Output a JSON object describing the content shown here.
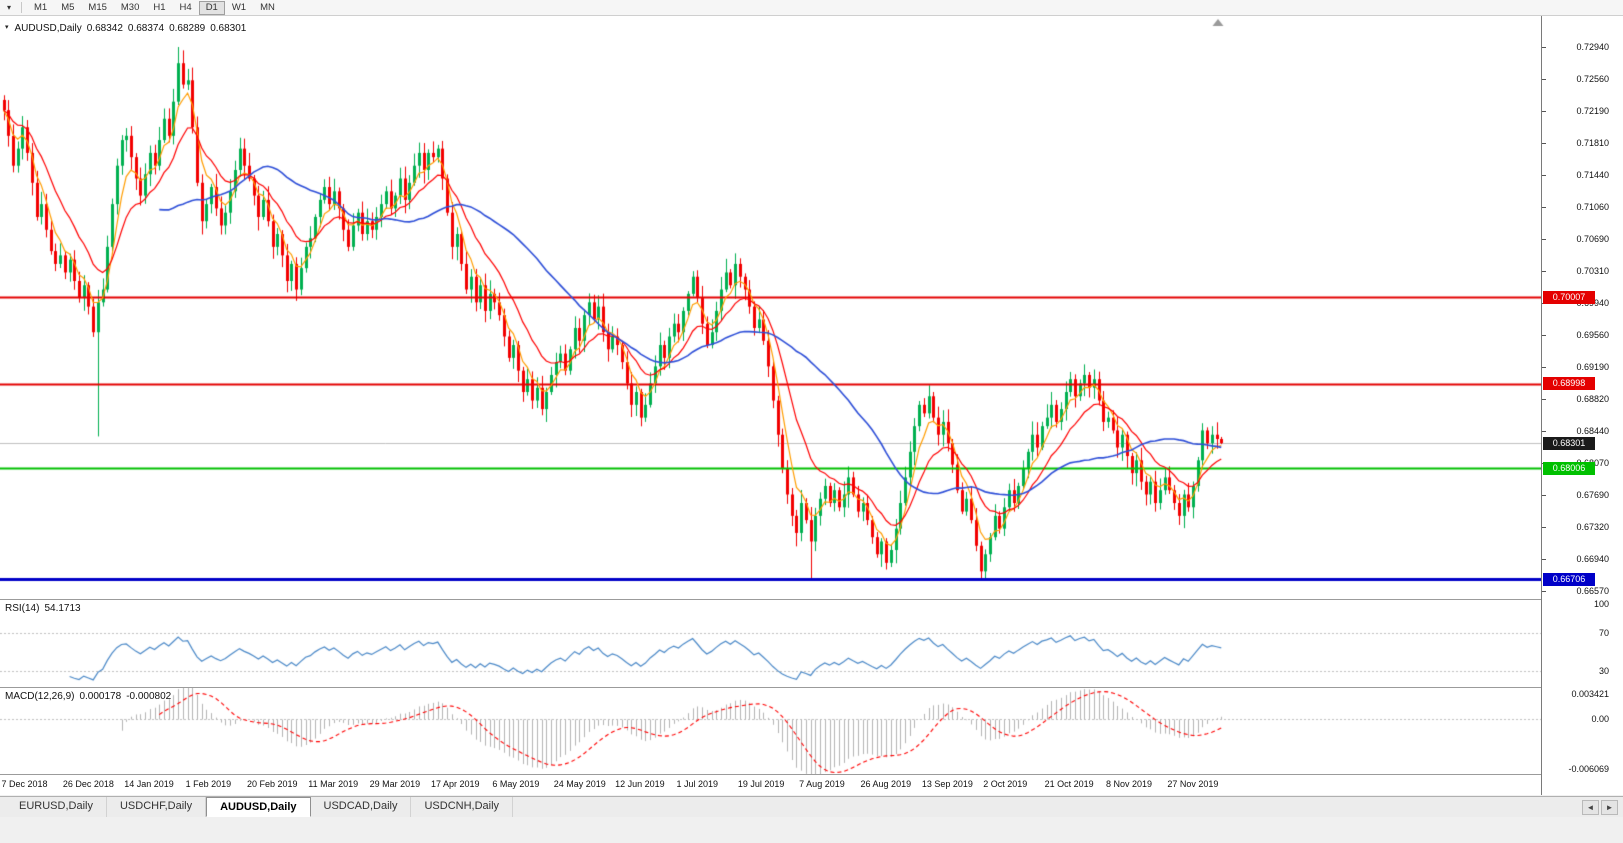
{
  "toolbar": {
    "menu_button": "▾",
    "timeframes": [
      "M1",
      "M5",
      "M15",
      "M30",
      "H1",
      "H4",
      "D1",
      "W1",
      "MN"
    ],
    "active_timeframe": "D1"
  },
  "chart_header": {
    "collapse_icon": "▾",
    "symbol": "AUDUSD,Daily",
    "open": "0.68342",
    "high": "0.68374",
    "low": "0.68289",
    "close": "0.68301"
  },
  "price_axis_ticks": [
    "0.72940",
    "0.72560",
    "0.72190",
    "0.71810",
    "0.71440",
    "0.71060",
    "0.70690",
    "0.70310",
    "0.69940",
    "0.69560",
    "0.69190",
    "0.68820",
    "0.68440",
    "0.68070",
    "0.67690",
    "0.67320",
    "0.66940",
    "0.66570"
  ],
  "price_badges": [
    {
      "name": "resistance-1",
      "label": "0.70007",
      "value": 0.70007,
      "bg": "#e40000",
      "fg": "#ffffff"
    },
    {
      "name": "resistance-2",
      "label": "0.68998",
      "value": 0.68998,
      "bg": "#e40000",
      "fg": "#ffffff"
    },
    {
      "name": "last-price",
      "label": "0.68301",
      "value": 0.68301,
      "bg": "#1a1a1a",
      "fg": "#ffffff"
    },
    {
      "name": "support",
      "label": "0.68006",
      "value": 0.68006,
      "bg": "#00c000",
      "fg": "#ffffff"
    },
    {
      "name": "support-major",
      "label": "0.66706",
      "value": 0.66706,
      "bg": "#0000c8",
      "fg": "#ffffff"
    }
  ],
  "date_axis": [
    "7 Dec 2018",
    "26 Dec 2018",
    "14 Jan 2019",
    "1 Feb 2019",
    "20 Feb 2019",
    "11 Mar 2019",
    "29 Mar 2019",
    "17 Apr 2019",
    "6 May 2019",
    "24 May 2019",
    "12 Jun 2019",
    "1 Jul 2019",
    "19 Jul 2019",
    "7 Aug 2019",
    "26 Aug 2019",
    "13 Sep 2019",
    "2 Oct 2019",
    "21 Oct 2019",
    "8 Nov 2019",
    "27 Nov 2019"
  ],
  "rsi_panel": {
    "title": "RSI(14)",
    "value": "54.1713",
    "axis_labels": [
      "100",
      "70",
      "30"
    ]
  },
  "macd_panel": {
    "title": "MACD(12,26,9)",
    "value_main": "0.000178",
    "value_signal": "-0.000802",
    "axis_labels": [
      "0.003421",
      "0.00",
      "-0.006069"
    ]
  },
  "tabs": {
    "items": [
      "EURUSD,Daily",
      "USDCHF,Daily",
      "AUDUSD,Daily",
      "USDCAD,Daily",
      "USDCNH,Daily"
    ],
    "active": "AUDUSD,Daily",
    "scroll_left": "◄",
    "scroll_right": "►"
  },
  "chart_data": {
    "type": "candlestick",
    "symbol": "AUDUSD",
    "timeframe": "Daily",
    "current_bar": {
      "open": 0.68342,
      "high": 0.68374,
      "low": 0.68289,
      "close": 0.68301
    },
    "y_axis_range": [
      0.6657,
      0.7294
    ],
    "x_labels": [
      "7 Dec 2018",
      "26 Dec 2018",
      "14 Jan 2019",
      "1 Feb 2019",
      "20 Feb 2019",
      "11 Mar 2019",
      "29 Mar 2019",
      "17 Apr 2019",
      "6 May 2019",
      "24 May 2019",
      "12 Jun 2019",
      "1 Jul 2019",
      "19 Jul 2019",
      "7 Aug 2019",
      "26 Aug 2019",
      "13 Sep 2019",
      "2 Oct 2019",
      "21 Oct 2019",
      "8 Nov 2019",
      "27 Nov 2019"
    ],
    "bars_per_label": 13,
    "up_color": "#00b050",
    "down_color": "#f20000",
    "closes": [
      0.722,
      0.719,
      0.7155,
      0.7175,
      0.72,
      0.717,
      0.7135,
      0.7095,
      0.711,
      0.708,
      0.7055,
      0.704,
      0.705,
      0.703,
      0.7045,
      0.702,
      0.7,
      0.7015,
      0.699,
      0.696,
      0.6995,
      0.701,
      0.706,
      0.711,
      0.7155,
      0.7185,
      0.719,
      0.7165,
      0.714,
      0.712,
      0.7145,
      0.717,
      0.7155,
      0.7185,
      0.721,
      0.719,
      0.723,
      0.7275,
      0.725,
      0.7255,
      0.72,
      0.7135,
      0.709,
      0.711,
      0.713,
      0.7105,
      0.7085,
      0.71,
      0.7125,
      0.715,
      0.7175,
      0.7155,
      0.714,
      0.712,
      0.7095,
      0.7115,
      0.709,
      0.706,
      0.7075,
      0.705,
      0.702,
      0.704,
      0.701,
      0.7035,
      0.706,
      0.707,
      0.7095,
      0.7115,
      0.713,
      0.711,
      0.7125,
      0.7105,
      0.708,
      0.706,
      0.7085,
      0.71,
      0.7075,
      0.709,
      0.708,
      0.7095,
      0.711,
      0.7125,
      0.7105,
      0.712,
      0.714,
      0.7115,
      0.7135,
      0.7155,
      0.717,
      0.715,
      0.717,
      0.7165,
      0.7175,
      0.714,
      0.71,
      0.706,
      0.7075,
      0.704,
      0.701,
      0.7025,
      0.6995,
      0.7015,
      0.6985,
      0.7005,
      0.6995,
      0.698,
      0.6955,
      0.693,
      0.6945,
      0.6915,
      0.689,
      0.6905,
      0.688,
      0.6895,
      0.687,
      0.689,
      0.691,
      0.6925,
      0.6935,
      0.6915,
      0.694,
      0.6965,
      0.695,
      0.698,
      0.6995,
      0.6975,
      0.699,
      0.696,
      0.694,
      0.6955,
      0.6945,
      0.6925,
      0.69,
      0.6875,
      0.689,
      0.686,
      0.6875,
      0.69,
      0.692,
      0.6945,
      0.693,
      0.6955,
      0.697,
      0.696,
      0.6985,
      0.7005,
      0.7025,
      0.7,
      0.697,
      0.6945,
      0.696,
      0.6985,
      0.701,
      0.703,
      0.7015,
      0.704,
      0.7025,
      0.701,
      0.699,
      0.6965,
      0.6975,
      0.695,
      0.692,
      0.688,
      0.684,
      0.68,
      0.677,
      0.6745,
      0.6725,
      0.676,
      0.674,
      0.6715,
      0.6745,
      0.6765,
      0.678,
      0.676,
      0.6775,
      0.6755,
      0.677,
      0.679,
      0.677,
      0.675,
      0.676,
      0.674,
      0.672,
      0.67,
      0.6715,
      0.669,
      0.6705,
      0.673,
      0.676,
      0.679,
      0.682,
      0.685,
      0.6875,
      0.6865,
      0.6885,
      0.686,
      0.684,
      0.6855,
      0.683,
      0.6805,
      0.6775,
      0.675,
      0.6765,
      0.674,
      0.671,
      0.668,
      0.67,
      0.672,
      0.6745,
      0.673,
      0.6755,
      0.6775,
      0.676,
      0.678,
      0.68,
      0.682,
      0.684,
      0.6825,
      0.685,
      0.686,
      0.6875,
      0.6855,
      0.687,
      0.689,
      0.6905,
      0.6885,
      0.69,
      0.691,
      0.6895,
      0.6905,
      0.688,
      0.6855,
      0.686,
      0.6845,
      0.6825,
      0.684,
      0.6815,
      0.6795,
      0.681,
      0.6785,
      0.677,
      0.6785,
      0.676,
      0.6775,
      0.679,
      0.6775,
      0.676,
      0.6745,
      0.677,
      0.6755,
      0.678,
      0.681,
      0.6845,
      0.683,
      0.684,
      0.6835,
      0.68301
    ],
    "special_bars": {
      "20": {
        "low": 0.6838
      },
      "37": {
        "high": 0.7294
      },
      "171": {
        "low": 0.6671
      },
      "207": {
        "low": 0.6671
      },
      "258": {
        "high": 0.68374,
        "low": 0.68289
      }
    },
    "moving_averages": [
      {
        "type": "ema",
        "period": 5,
        "color": "#ff9d00"
      },
      {
        "type": "ema",
        "period": 13,
        "color": "#ff0000"
      },
      {
        "type": "sma",
        "period": 34,
        "color": "#2e4fd8"
      }
    ],
    "horizontal_lines": [
      {
        "price": 0.70007,
        "color": "#e40000",
        "width": 2
      },
      {
        "price": 0.68998,
        "color": "#e40000",
        "width": 2
      },
      {
        "price": 0.68006,
        "color": "#00c000",
        "width": 2
      },
      {
        "price": 0.66706,
        "color": "#0000c8",
        "width": 3
      }
    ],
    "bid_line": {
      "price": 0.68301,
      "color": "#c0c0c0"
    },
    "indicators": [
      {
        "name": "RSI",
        "period": 14,
        "current": 54.1713,
        "levels": [
          70,
          30
        ],
        "range_labels": [
          100,
          70,
          30
        ],
        "color": "#4b89c8"
      },
      {
        "name": "MACD",
        "fast": 12,
        "slow": 26,
        "signal": 9,
        "current_macd": 0.000178,
        "current_signal": -0.000802,
        "range": [
          -0.006069,
          0.003421
        ],
        "histogram_color": "#b4b4b4",
        "signal_color": "#ff0000"
      }
    ]
  }
}
